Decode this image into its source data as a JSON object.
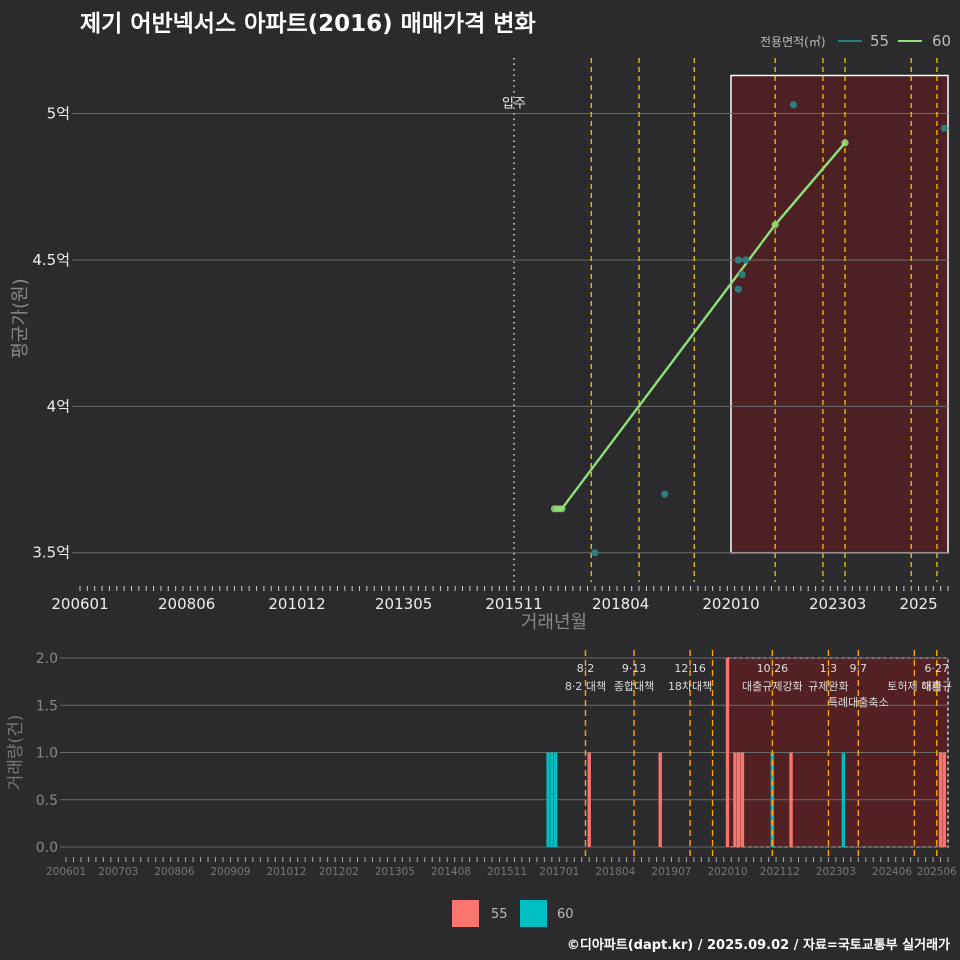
{
  "title": "제기 어반넥서스 아파트(2016) 매매가격 변화",
  "footer": "©디아파트(dapt.kr) / 2025.09.02 / 자료=국토교통부 실거래가",
  "colors": {
    "background": "#2b2b2d",
    "line60": "#8fe07a",
    "dot55": "#2e7d7d",
    "bar55": "#f8766d",
    "bar60": "#00bfc4",
    "policy": "#ffd400",
    "highlight": "#5a1f22",
    "grid": "#6a6a6a"
  },
  "legend_top": {
    "title": "전용면적(㎡)",
    "items": [
      "55",
      "60"
    ]
  },
  "legend_bottom": {
    "items": [
      "55",
      "60"
    ]
  },
  "chart_data": [
    {
      "type": "line",
      "title": "제기 어반넥서스 아파트(2016) 매매가격 변화",
      "xlabel": "거래년월",
      "ylabel": "평균가(원)",
      "x_ticks": [
        "200601",
        "200806",
        "201012",
        "201305",
        "201511",
        "201804",
        "202010",
        "202303",
        "2025"
      ],
      "y_ticks": [
        "3.5억",
        "4억",
        "4.5억",
        "5억"
      ],
      "ylim": [
        3.4,
        5.2
      ],
      "xlim": [
        "2006-01",
        "2025-09"
      ],
      "annotations": [
        {
          "x": "2015-11",
          "label": "입주"
        }
      ],
      "highlight_range": [
        "2020-10",
        "2025-09"
      ],
      "policy_dates": [
        "2017-08",
        "2018-09",
        "2019-12",
        "2021-10",
        "2022-11",
        "2023-05",
        "2024-11",
        "2025-06"
      ],
      "series": [
        {
          "name": "60",
          "kind": "line",
          "points": [
            [
              "2016-10",
              3.65
            ],
            [
              "2016-11",
              3.65
            ],
            [
              "2016-12",
              3.65
            ],
            [
              "2021-10",
              4.62
            ],
            [
              "2023-05",
              4.9
            ]
          ]
        },
        {
          "name": "55",
          "kind": "points",
          "points": [
            [
              "2017-09",
              3.5
            ],
            [
              "2019-04",
              3.7
            ],
            [
              "2020-12",
              4.5
            ],
            [
              "2020-12",
              4.4
            ],
            [
              "2021-01",
              4.45
            ],
            [
              "2021-02",
              4.5
            ],
            [
              "2022-03",
              5.03
            ],
            [
              "2025-08",
              4.95
            ]
          ]
        }
      ]
    },
    {
      "type": "bar",
      "xlabel": "",
      "ylabel": "거래량(건)",
      "x_ticks": [
        "200601",
        "200703",
        "200806",
        "200909",
        "201012",
        "201202",
        "201305",
        "201408",
        "201511",
        "201701",
        "201804",
        "201907",
        "202010",
        "202112",
        "202303",
        "202406",
        "202506"
      ],
      "y_ticks": [
        "0.0",
        "0.5",
        "1.0",
        "1.5",
        "2.0"
      ],
      "ylim": [
        0,
        2
      ],
      "highlight_range": [
        "2020-10",
        "2025-09"
      ],
      "policies": [
        {
          "date": "2017-08",
          "date_label": "8·2",
          "text": "8·2 대책",
          "color": "#ffa500"
        },
        {
          "date": "2018-09",
          "date_label": "9·13",
          "text": "종합대책",
          "color": "#ffa500"
        },
        {
          "date": "2019-12",
          "date_label": "12·16",
          "text": "18차대책",
          "color": "#ffa500"
        },
        {
          "date": "2020-06",
          "date_label": "",
          "text": "",
          "color": "#ffa500"
        },
        {
          "date": "2021-10",
          "date_label": "10·26",
          "text": "대출규제강화",
          "color": "#ffa500"
        },
        {
          "date": "2023-01",
          "date_label": "1·3",
          "text": "규제완화",
          "color": "#ffa500"
        },
        {
          "date": "2023-09",
          "date_label": "9·7",
          "text": "특례대출축소",
          "color": "#ffa500"
        },
        {
          "date": "2024-12",
          "date_label": "",
          "text": "토허제 해제",
          "color": "#ffa500"
        },
        {
          "date": "2025-06",
          "date_label": "6·27",
          "text": "대출규",
          "color": "#ffa500"
        }
      ],
      "series": [
        {
          "name": "60",
          "values": [
            [
              "2016-10",
              1
            ],
            [
              "2016-11",
              1
            ],
            [
              "2016-12",
              1
            ],
            [
              "2021-10",
              1
            ],
            [
              "2023-05",
              1
            ]
          ]
        },
        {
          "name": "55",
          "values": [
            [
              "2017-09",
              1
            ],
            [
              "2019-04",
              1
            ],
            [
              "2020-10",
              2
            ],
            [
              "2020-12",
              1
            ],
            [
              "2021-01",
              1
            ],
            [
              "2021-02",
              1
            ],
            [
              "2022-03",
              1
            ],
            [
              "2025-07",
              1
            ],
            [
              "2025-08",
              1
            ]
          ]
        }
      ]
    }
  ]
}
